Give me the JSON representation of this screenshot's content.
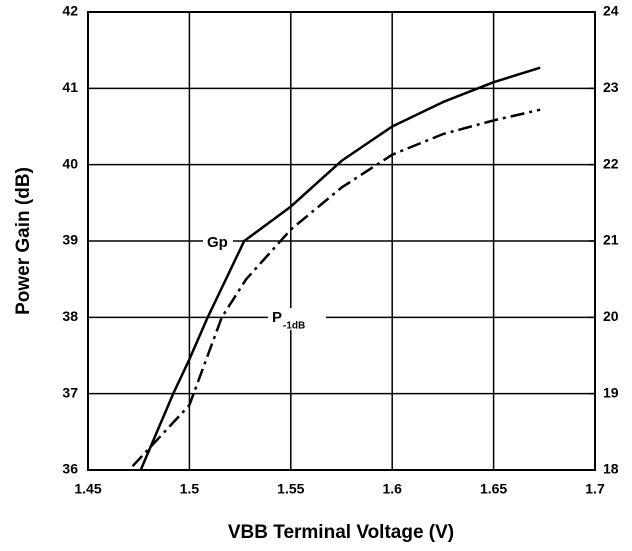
{
  "chart_data": {
    "type": "line",
    "xlabel": "VBB Terminal Voltage (V)",
    "ylabel": "Power Gain (dB)",
    "xlim": [
      1.45,
      1.7
    ],
    "xticks": [
      1.45,
      1.5,
      1.55,
      1.6,
      1.65,
      1.7
    ],
    "ylim": [
      36,
      42
    ],
    "yticks": [
      36,
      37,
      38,
      39,
      40,
      41,
      42
    ],
    "y2lim": [
      18,
      24
    ],
    "y2ticks": [
      18,
      19,
      20,
      21,
      22,
      23,
      24
    ],
    "grid": true,
    "series": [
      {
        "name": "Gp",
        "color": "#000000",
        "dash": "solid",
        "x": [
          1.476,
          1.492,
          1.5,
          1.509,
          1.527,
          1.55,
          1.575,
          1.6,
          1.625,
          1.65,
          1.673
        ],
        "values": [
          36,
          37,
          37.45,
          38,
          39,
          39.45,
          40.05,
          40.5,
          40.82,
          41.08,
          41.27
        ]
      },
      {
        "name": "P",
        "subscript": "-1dB",
        "axis": "y2",
        "color": "#000000",
        "dash": "dashdot",
        "x": [
          1.472,
          1.5,
          1.516,
          1.528,
          1.55,
          1.575,
          1.6,
          1.625,
          1.65,
          1.673
        ],
        "values": [
          18.05,
          18.85,
          20,
          20.5,
          21.15,
          21.7,
          22.13,
          22.4,
          22.58,
          22.72
        ]
      }
    ]
  }
}
